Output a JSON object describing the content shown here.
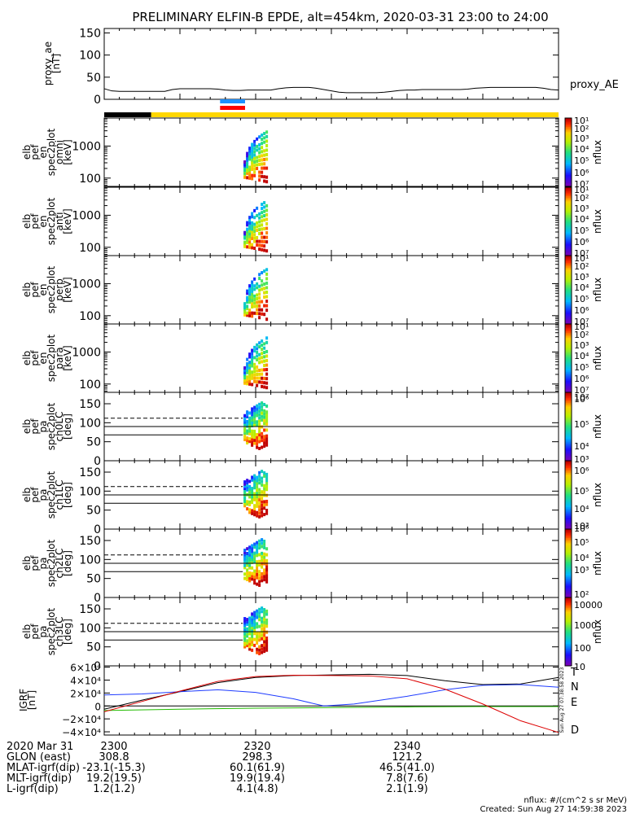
{
  "title": "PRELIMINARY ELFIN-B EPDE, alt=454km, 2020-03-31 23:00 to 24:00",
  "time": {
    "major_ticks": [
      {
        "minute": 0,
        "label": "2300"
      },
      {
        "minute": 20,
        "label": "2320"
      },
      {
        "minute": 40,
        "label": "2340"
      }
    ]
  },
  "proxy_ae": {
    "ylabel": [
      "proxy_ae",
      "[nT]"
    ],
    "series_label": "proxy_AE",
    "ylim": [
      0,
      160
    ],
    "yticks": [
      0,
      50,
      100,
      150
    ],
    "points": [
      [
        0,
        24
      ],
      [
        1,
        19
      ],
      [
        2,
        18
      ],
      [
        3,
        18
      ],
      [
        4,
        18
      ],
      [
        5,
        18
      ],
      [
        6,
        18
      ],
      [
        7,
        18
      ],
      [
        8,
        18
      ],
      [
        9,
        22
      ],
      [
        10,
        24
      ],
      [
        11,
        24
      ],
      [
        12,
        24
      ],
      [
        13,
        24
      ],
      [
        14,
        24
      ],
      [
        15,
        23
      ],
      [
        16,
        21
      ],
      [
        17,
        20
      ],
      [
        18,
        20
      ],
      [
        19,
        21
      ],
      [
        20,
        21
      ],
      [
        21,
        21
      ],
      [
        22,
        21
      ],
      [
        23,
        24
      ],
      [
        24,
        26
      ],
      [
        25,
        27
      ],
      [
        26,
        27
      ],
      [
        27,
        27
      ],
      [
        28,
        25
      ],
      [
        29,
        22
      ],
      [
        30,
        19
      ],
      [
        31,
        16
      ],
      [
        32,
        15
      ],
      [
        33,
        15
      ],
      [
        34,
        15
      ],
      [
        35,
        15
      ],
      [
        36,
        15
      ],
      [
        37,
        16
      ],
      [
        38,
        18
      ],
      [
        39,
        20
      ],
      [
        40,
        21
      ],
      [
        41,
        21
      ],
      [
        42,
        22
      ],
      [
        43,
        22
      ],
      [
        44,
        22
      ],
      [
        45,
        22
      ],
      [
        46,
        22
      ],
      [
        47,
        22
      ],
      [
        48,
        23
      ],
      [
        49,
        25
      ],
      [
        50,
        26
      ],
      [
        51,
        27
      ],
      [
        52,
        27
      ],
      [
        53,
        27
      ],
      [
        54,
        27
      ],
      [
        55,
        27
      ],
      [
        56,
        27
      ],
      [
        57,
        27
      ],
      [
        58,
        25
      ],
      [
        59,
        22
      ],
      [
        60,
        21
      ]
    ]
  },
  "status_bars": {
    "colors": {
      "black": "#000000",
      "yellow": "#ffd700",
      "blue": "#1e90ff",
      "red": "#ff0000"
    },
    "segments": [
      {
        "color": "black",
        "start_min": 0,
        "end_min": 6.2
      },
      {
        "color": "yellow",
        "start_min": 6.2,
        "end_min": 60
      }
    ],
    "markers": [
      {
        "color": "blue",
        "start_min": 15.3,
        "end_min": 18.6
      },
      {
        "color": "red",
        "start_min": 15.3,
        "end_min": 18.6
      }
    ]
  },
  "spectrograms": [
    {
      "ylabel": [
        "elb",
        "pef",
        "en",
        "spec2plot",
        "omni",
        "[keV]"
      ],
      "scale": "log",
      "ylim": [
        55,
        7500
      ],
      "ytick_labels": [
        {
          "value": 100,
          "label": "100"
        },
        {
          "value": 1000,
          "label": "1000"
        }
      ],
      "color_min_exp": 1,
      "color_max_exp": 7,
      "color_labels": [
        "10¹",
        "10²",
        "10³",
        "10⁴",
        "10⁵",
        "10⁶",
        "10⁷"
      ],
      "unit": "nflux"
    },
    {
      "ylabel": [
        "elb",
        "pef",
        "en",
        "spec2plot",
        "anti",
        "[keV]"
      ],
      "scale": "log",
      "ylim": [
        55,
        7500
      ],
      "ytick_labels": [
        {
          "value": 100,
          "label": "100"
        },
        {
          "value": 1000,
          "label": "1000"
        }
      ],
      "color_min_exp": 1,
      "color_max_exp": 7,
      "color_labels": [
        "10¹",
        "10²",
        "10³",
        "10⁴",
        "10⁵",
        "10⁶",
        "10⁷"
      ],
      "unit": "nflux"
    },
    {
      "ylabel": [
        "elb",
        "pef",
        "en",
        "spec2plot",
        "perp",
        "[keV]"
      ],
      "scale": "log",
      "ylim": [
        55,
        7500
      ],
      "ytick_labels": [
        {
          "value": 100,
          "label": "100"
        },
        {
          "value": 1000,
          "label": "1000"
        }
      ],
      "color_min_exp": 1,
      "color_max_exp": 7,
      "color_labels": [
        "10¹",
        "10²",
        "10³",
        "10⁴",
        "10⁵",
        "10⁶",
        "10⁷"
      ],
      "unit": "nflux"
    },
    {
      "ylabel": [
        "elb",
        "pef",
        "en",
        "spec2plot",
        "para",
        "[keV]"
      ],
      "scale": "log",
      "ylim": [
        55,
        7500
      ],
      "ytick_labels": [
        {
          "value": 100,
          "label": "100"
        },
        {
          "value": 1000,
          "label": "1000"
        }
      ],
      "color_min_exp": 1,
      "color_max_exp": 7,
      "color_labels": [
        "10¹",
        "10²",
        "10³",
        "10⁴",
        "10⁵",
        "10⁶",
        "10⁷"
      ],
      "unit": "nflux"
    },
    {
      "ylabel": [
        "elb",
        "pef",
        "pa",
        "spec2plot",
        "ch0LC",
        "[deg]"
      ],
      "scale": "linear",
      "ylim": [
        0,
        180
      ],
      "ytick_labels": [
        {
          "value": 0,
          "label": "0"
        },
        {
          "value": 50,
          "label": "50"
        },
        {
          "value": 100,
          "label": "100"
        },
        {
          "value": 150,
          "label": "150"
        }
      ],
      "color_min_exp": 3,
      "color_max_exp": 7,
      "color_labels": [
        "10³",
        "10⁴",
        "10⁵",
        "10⁶",
        "10⁷"
      ],
      "unit": "nflux"
    },
    {
      "ylabel": [
        "elb",
        "pef",
        "pa",
        "spec2plot",
        "ch1LC",
        "[deg]"
      ],
      "scale": "linear",
      "ylim": [
        0,
        180
      ],
      "ytick_labels": [
        {
          "value": 0,
          "label": "0"
        },
        {
          "value": 50,
          "label": "50"
        },
        {
          "value": 100,
          "label": "100"
        },
        {
          "value": 150,
          "label": "150"
        }
      ],
      "color_min_exp": 3,
      "color_max_exp": 6,
      "color_labels": [
        "10³",
        "10⁴",
        "10⁵",
        "10⁶"
      ],
      "unit": "nflux"
    },
    {
      "ylabel": [
        "elb",
        "pef",
        "pa",
        "spec2plot",
        "ch2LC",
        "[deg]"
      ],
      "scale": "linear",
      "ylim": [
        0,
        180
      ],
      "ytick_labels": [
        {
          "value": 0,
          "label": "0"
        },
        {
          "value": 50,
          "label": "50"
        },
        {
          "value": 100,
          "label": "100"
        },
        {
          "value": 150,
          "label": "150"
        }
      ],
      "color_min_exp": 2,
      "color_max_exp": 6,
      "color_labels": [
        "10²",
        "10³",
        "10⁴",
        "10⁵",
        "10⁶"
      ],
      "unit": "nflux"
    },
    {
      "ylabel": [
        "elb",
        "pef",
        "pa",
        "spec2plot",
        "ch3LC",
        "[deg]"
      ],
      "scale": "linear",
      "ylim": [
        0,
        180
      ],
      "ytick_labels": [
        {
          "value": 0,
          "label": "0"
        },
        {
          "value": 50,
          "label": "50"
        },
        {
          "value": 100,
          "label": "100"
        },
        {
          "value": 150,
          "label": "150"
        }
      ],
      "color_min_exp": 1,
      "color_max_exp": 4,
      "color_labels": [
        "10",
        "100",
        "1000",
        "10000"
      ],
      "unit": "nflux"
    }
  ],
  "pitch_angle_lines": {
    "loss_cone_deg": 68,
    "perpendicular_deg": 90,
    "anti_loss_cone_deg": 112
  },
  "grf": {
    "ylabel": [
      "IGRF",
      "[nT]"
    ],
    "ylim": [
      -45000,
      62000
    ],
    "yticks": [
      {
        "value": -40000,
        "label": "−4×10⁴"
      },
      {
        "value": -20000,
        "label": "−2×10⁴"
      },
      {
        "value": 0,
        "label": "0"
      },
      {
        "value": 20000,
        "label": "2×10⁴"
      },
      {
        "value": 40000,
        "label": "4×10⁴"
      },
      {
        "value": 60000,
        "label": "6×10⁴"
      }
    ],
    "series": [
      {
        "name": "T",
        "color": "#000000",
        "points": [
          [
            0,
            -5000
          ],
          [
            5,
            9000
          ],
          [
            10,
            22000
          ],
          [
            15,
            36000
          ],
          [
            20,
            44000
          ],
          [
            25,
            47000
          ],
          [
            30,
            48000
          ],
          [
            35,
            49000
          ],
          [
            40,
            47000
          ],
          [
            45,
            39000
          ],
          [
            50,
            33000
          ],
          [
            55,
            34000
          ],
          [
            60,
            44000
          ]
        ]
      },
      {
        "name": "N",
        "color": "#1f3cff",
        "points": [
          [
            0,
            17000
          ],
          [
            5,
            18500
          ],
          [
            10,
            22000
          ],
          [
            15,
            25000
          ],
          [
            20,
            21000
          ],
          [
            25,
            11000
          ],
          [
            29,
            0
          ],
          [
            33,
            3000
          ],
          [
            40,
            15000
          ],
          [
            45,
            25000
          ],
          [
            50,
            32000
          ],
          [
            55,
            33000
          ],
          [
            60,
            29000
          ]
        ]
      },
      {
        "name": "E",
        "color": "#22bb00",
        "points": [
          [
            0,
            -7000
          ],
          [
            10,
            -5000
          ],
          [
            20,
            -3500
          ],
          [
            30,
            -2500
          ],
          [
            40,
            -1500
          ],
          [
            50,
            -1000
          ],
          [
            60,
            -1000
          ]
        ]
      },
      {
        "name": "D",
        "color": "#dd0000",
        "points": [
          [
            0,
            -9000
          ],
          [
            5,
            7000
          ],
          [
            10,
            23000
          ],
          [
            15,
            38000
          ],
          [
            20,
            45500
          ],
          [
            25,
            47500
          ],
          [
            30,
            47000
          ],
          [
            35,
            46500
          ],
          [
            40,
            42000
          ],
          [
            45,
            26000
          ],
          [
            50,
            3000
          ],
          [
            55,
            -23000
          ],
          [
            60,
            -41000
          ]
        ]
      }
    ],
    "created_vertical": "Sun Aug 27 07:38:58 2023"
  },
  "footer": {
    "rows": [
      {
        "label": "2020 Mar 31",
        "values": [
          "2300",
          "2320",
          "2340"
        ]
      },
      {
        "label": "GLON (east)",
        "values": [
          "308.8",
          "298.3",
          "121.2"
        ]
      },
      {
        "label": "MLAT-igrf(dip)",
        "values": [
          "-23.1(-15.3)",
          "60.1(61.9)",
          "46.5(41.0)"
        ]
      },
      {
        "label": "MLT-igrf(dip)",
        "values": [
          "19.2(19.5)",
          "19.9(19.4)",
          "7.8(7.6)"
        ]
      },
      {
        "label": "L-igrf(dip)",
        "values": [
          "1.2(1.2)",
          "4.1(4.8)",
          "2.1(1.9)"
        ]
      }
    ],
    "units_note": "nflux: #/(cm^2 s sr MeV)",
    "created": "Created: Sun Aug 27 14:59:38 2023"
  }
}
